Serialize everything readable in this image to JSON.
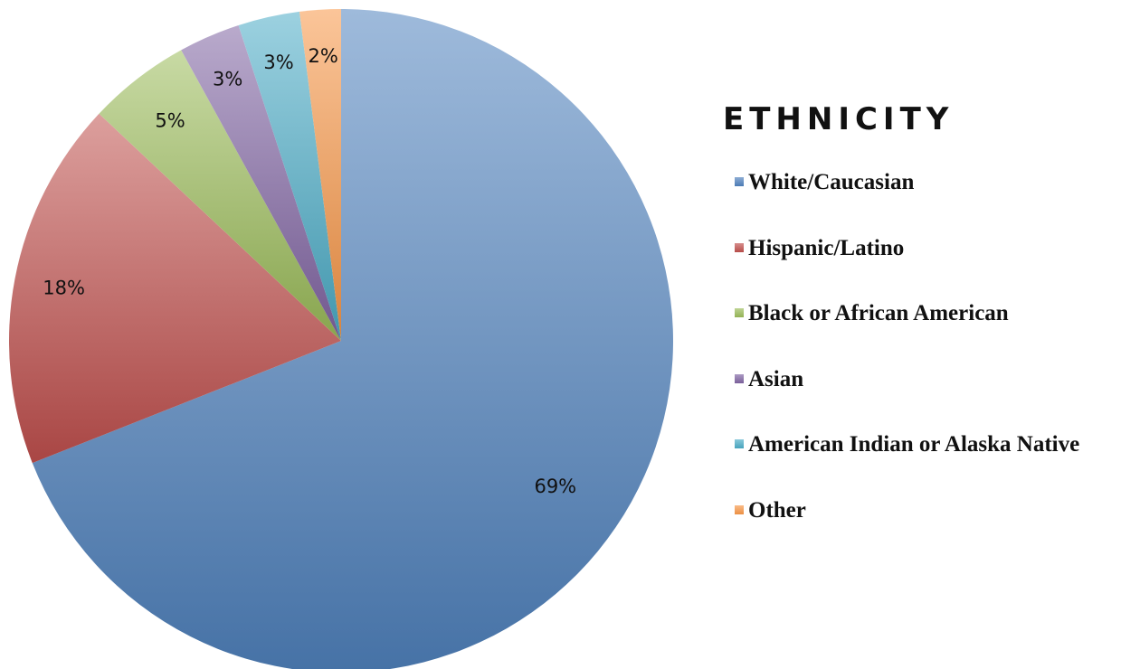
{
  "chart_data": {
    "type": "pie",
    "title": "ETHNICITY",
    "categories": [
      "White/Caucasian",
      "Hispanic/Latino",
      "Black or African American",
      "Asian",
      "American Indian or Alaska Native",
      "Other"
    ],
    "values": [
      69,
      18,
      5,
      3,
      3,
      2
    ],
    "data_labels": [
      "69%",
      "18%",
      "5%",
      "3%",
      "3%",
      "2%"
    ],
    "colors": [
      "#4f81bd",
      "#c0504d",
      "#9bbb59",
      "#8064a2",
      "#4bacc6",
      "#f79646"
    ],
    "start_angle": "12 o'clock",
    "direction": "clockwise",
    "legend_position": "right"
  }
}
